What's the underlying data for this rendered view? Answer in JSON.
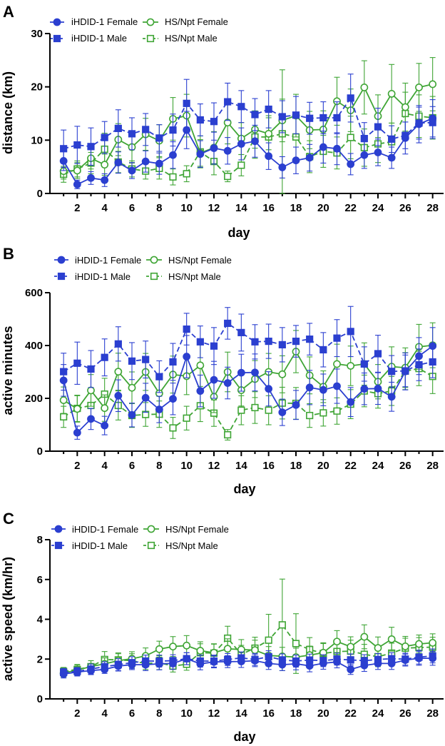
{
  "figure": {
    "legend_entries": [
      "iHDID-1 Female",
      "iHDID-1 Male",
      "HS/Npt Female",
      "HS/Npt Male"
    ]
  },
  "colors": {
    "ihdid": "#2b3fd0",
    "hsnpt": "#3fa535"
  },
  "chart_data": [
    {
      "panel_label": "A",
      "type": "line",
      "title": "",
      "xlabel": "day",
      "ylabel": "distance (km)",
      "xlim": [
        0,
        28.8
      ],
      "ylim": [
        0,
        30
      ],
      "xticks": [
        2,
        4,
        6,
        8,
        10,
        12,
        14,
        16,
        18,
        20,
        22,
        24,
        26,
        28
      ],
      "yticks": [
        0,
        10,
        20,
        30
      ],
      "legend": "top-left",
      "x": [
        1,
        2,
        3,
        4,
        5,
        6,
        7,
        8,
        9,
        10,
        11,
        12,
        13,
        14,
        15,
        16,
        17,
        18,
        19,
        20,
        21,
        22,
        23,
        24,
        25,
        26,
        27,
        28
      ],
      "series": [
        {
          "name": "iHDID-1 Female",
          "marker": "circle",
          "filled": true,
          "dashed": false,
          "color": "#2b3fd0",
          "values": [
            6.1,
            1.7,
            2.9,
            2.5,
            5.8,
            4.3,
            6.0,
            5.6,
            7.2,
            11.9,
            7.4,
            8.5,
            8.0,
            9.3,
            9.8,
            7.0,
            4.9,
            6.2,
            6.7,
            8.7,
            8.4,
            5.5,
            7.2,
            7.7,
            6.7,
            10.4,
            13.0,
            14.1
          ],
          "err": [
            1.8,
            0.8,
            1.2,
            1.2,
            2.0,
            1.5,
            2.0,
            2.0,
            2.5,
            3.5,
            2.5,
            3.0,
            2.5,
            3.0,
            3.0,
            2.5,
            2.0,
            2.5,
            2.5,
            3.0,
            3.0,
            2.0,
            2.5,
            2.5,
            2.0,
            3.0,
            3.5,
            3.5
          ]
        },
        {
          "name": "iHDID-1 Male",
          "marker": "square",
          "filled": true,
          "dashed": true,
          "color": "#2b3fd0",
          "values": [
            8.4,
            9.1,
            8.8,
            10.5,
            12.2,
            11.2,
            12.0,
            10.4,
            11.9,
            16.9,
            13.8,
            13.5,
            17.2,
            16.3,
            14.8,
            15.8,
            14.4,
            14.7,
            14.1,
            14.2,
            14.2,
            17.9,
            10.3,
            12.5,
            10.2,
            10.9,
            13.2,
            13.3
          ],
          "err": [
            3.5,
            3.5,
            3.5,
            3.0,
            3.5,
            3.0,
            3.0,
            2.5,
            3.0,
            4.5,
            3.0,
            3.5,
            3.5,
            3.0,
            3.0,
            3.5,
            3.0,
            3.5,
            3.0,
            3.0,
            3.0,
            4.5,
            3.0,
            3.5,
            2.5,
            2.5,
            3.0,
            3.0
          ]
        },
        {
          "name": "HS/Npt Female",
          "marker": "circle",
          "filled": false,
          "dashed": false,
          "color": "#3fa535",
          "values": [
            4.2,
            4.3,
            6.6,
            5.4,
            10.1,
            8.7,
            11.1,
            9.9,
            14.0,
            14.6,
            7.6,
            8.6,
            13.3,
            10.3,
            12.0,
            11.2,
            13.7,
            14.6,
            11.9,
            12.0,
            17.3,
            15.6,
            19.9,
            14.5,
            18.7,
            16.2,
            19.9,
            20.5
          ],
          "err": [
            1.5,
            1.5,
            2.0,
            2.0,
            3.0,
            3.0,
            3.0,
            3.0,
            4.0,
            4.0,
            2.5,
            3.0,
            4.0,
            3.0,
            3.5,
            3.0,
            4.0,
            4.0,
            3.5,
            3.5,
            4.5,
            4.0,
            5.0,
            4.0,
            5.5,
            4.5,
            4.5,
            5.0
          ]
        },
        {
          "name": "HS/Npt Male",
          "marker": "square",
          "filled": false,
          "dashed": true,
          "color": "#3fa535",
          "values": [
            3.6,
            4.6,
            5.7,
            8.3,
            5.9,
            4.6,
            4.2,
            4.7,
            3.1,
            3.7,
            7.8,
            6.0,
            3.2,
            5.3,
            10.6,
            10.6,
            11.2,
            10.6,
            6.9,
            7.9,
            7.6,
            10.5,
            8.6,
            9.3,
            9.7,
            15.0,
            14.5,
            14.2
          ],
          "err": [
            1.5,
            1.5,
            2.0,
            3.0,
            2.0,
            1.5,
            1.5,
            2.0,
            1.5,
            1.5,
            3.0,
            2.5,
            1.0,
            2.0,
            4.0,
            4.0,
            12.0,
            4.5,
            3.0,
            3.0,
            3.0,
            4.0,
            3.5,
            3.5,
            3.5,
            4.0,
            4.0,
            4.0
          ]
        }
      ]
    },
    {
      "panel_label": "B",
      "type": "line",
      "title": "",
      "xlabel": "day",
      "ylabel": "active minutes",
      "xlim": [
        0,
        28.8
      ],
      "ylim": [
        0,
        600
      ],
      "xticks": [
        2,
        4,
        6,
        8,
        10,
        12,
        14,
        16,
        18,
        20,
        22,
        24,
        26,
        28
      ],
      "yticks": [
        0,
        200,
        400,
        600
      ],
      "legend": "top-left",
      "x": [
        1,
        2,
        3,
        4,
        5,
        6,
        7,
        8,
        9,
        10,
        11,
        12,
        13,
        14,
        15,
        16,
        17,
        18,
        19,
        20,
        21,
        22,
        23,
        24,
        25,
        26,
        27,
        28
      ],
      "series": [
        {
          "name": "iHDID-1 Female",
          "marker": "circle",
          "filled": true,
          "dashed": false,
          "color": "#2b3fd0",
          "values": [
            268,
            70,
            122,
            97,
            210,
            137,
            202,
            158,
            198,
            358,
            228,
            270,
            258,
            297,
            298,
            236,
            147,
            175,
            241,
            232,
            246,
            186,
            236,
            237,
            206,
            302,
            360,
            398
          ],
          "err": [
            60,
            25,
            40,
            35,
            60,
            45,
            55,
            50,
            60,
            80,
            60,
            70,
            60,
            70,
            70,
            65,
            50,
            55,
            65,
            60,
            65,
            55,
            60,
            60,
            55,
            70,
            70,
            70
          ]
        },
        {
          "name": "iHDID-1 Male",
          "marker": "square",
          "filled": true,
          "dashed": true,
          "color": "#2b3fd0",
          "values": [
            301,
            333,
            311,
            355,
            406,
            341,
            347,
            282,
            338,
            462,
            414,
            398,
            484,
            449,
            414,
            416,
            403,
            416,
            424,
            384,
            428,
            453,
            330,
            369,
            302,
            304,
            327,
            338
          ],
          "err": [
            70,
            80,
            70,
            70,
            65,
            70,
            70,
            60,
            70,
            60,
            60,
            70,
            60,
            70,
            65,
            65,
            65,
            60,
            60,
            65,
            70,
            95,
            65,
            70,
            60,
            60,
            60,
            60
          ]
        },
        {
          "name": "HS/Npt Female",
          "marker": "circle",
          "filled": false,
          "dashed": false,
          "color": "#3fa535",
          "values": [
            193,
            160,
            230,
            163,
            301,
            240,
            300,
            219,
            290,
            284,
            325,
            206,
            300,
            231,
            273,
            300,
            291,
            377,
            287,
            244,
            330,
            323,
            330,
            263,
            320,
            316,
            395,
            401
          ],
          "err": [
            50,
            50,
            60,
            50,
            70,
            60,
            70,
            60,
            70,
            70,
            80,
            60,
            75,
            60,
            70,
            70,
            70,
            80,
            70,
            60,
            75,
            75,
            80,
            65,
            75,
            75,
            85,
            85
          ]
        },
        {
          "name": "HS/Npt Male",
          "marker": "square",
          "filled": false,
          "dashed": true,
          "color": "#3fa535",
          "values": [
            130,
            162,
            173,
            216,
            173,
            135,
            139,
            140,
            88,
            125,
            172,
            144,
            62,
            155,
            165,
            155,
            182,
            181,
            135,
            145,
            152,
            178,
            228,
            218,
            228,
            303,
            313,
            283
          ],
          "err": [
            40,
            50,
            50,
            60,
            55,
            45,
            45,
            50,
            40,
            45,
            60,
            50,
            20,
            55,
            60,
            55,
            60,
            60,
            45,
            50,
            50,
            55,
            60,
            55,
            55,
            70,
            65,
            65
          ]
        }
      ]
    },
    {
      "panel_label": "C",
      "type": "line",
      "title": "",
      "xlabel": "day",
      "ylabel": "active speed (km/hr)",
      "xlim": [
        0,
        28.8
      ],
      "ylim": [
        0,
        8
      ],
      "xticks": [
        2,
        4,
        6,
        8,
        10,
        12,
        14,
        16,
        18,
        20,
        22,
        24,
        26,
        28
      ],
      "yticks": [
        0,
        2,
        4,
        6,
        8
      ],
      "legend": "top-left",
      "x": [
        1,
        2,
        3,
        4,
        5,
        6,
        7,
        8,
        9,
        10,
        11,
        12,
        13,
        14,
        15,
        16,
        17,
        18,
        19,
        20,
        21,
        22,
        23,
        24,
        25,
        26,
        27,
        28
      ],
      "series": [
        {
          "name": "iHDID-1 Female",
          "marker": "circle",
          "filled": true,
          "dashed": false,
          "color": "#2b3fd0",
          "values": [
            1.25,
            1.35,
            1.42,
            1.48,
            1.65,
            1.72,
            1.72,
            1.76,
            1.78,
            2.02,
            1.76,
            1.86,
            1.87,
            1.88,
            1.92,
            1.78,
            1.72,
            1.76,
            1.66,
            1.79,
            1.86,
            1.48,
            1.68,
            1.78,
            1.78,
            1.95,
            2.04,
            2.04
          ],
          "err": [
            0.2,
            0.2,
            0.2,
            0.2,
            0.25,
            0.25,
            0.3,
            0.3,
            0.3,
            0.3,
            0.3,
            0.3,
            0.3,
            0.3,
            0.3,
            0.3,
            0.3,
            0.3,
            0.3,
            0.3,
            0.3,
            0.25,
            0.3,
            0.3,
            0.3,
            0.3,
            0.35,
            0.35
          ]
        },
        {
          "name": "iHDID-1 Male",
          "marker": "square",
          "filled": true,
          "dashed": true,
          "color": "#2b3fd0",
          "values": [
            1.33,
            1.38,
            1.5,
            1.62,
            1.72,
            1.82,
            1.9,
            1.9,
            1.92,
            2.02,
            1.9,
            1.9,
            1.98,
            2.06,
            1.98,
            2.12,
            1.96,
            1.9,
            1.95,
            1.92,
            2.0,
            1.96,
            1.92,
            1.98,
            2.02,
            2.0,
            2.1,
            2.16
          ],
          "err": [
            0.2,
            0.2,
            0.25,
            0.25,
            0.3,
            0.3,
            0.3,
            0.3,
            0.3,
            0.3,
            0.3,
            0.3,
            0.3,
            0.3,
            0.3,
            0.3,
            0.3,
            0.3,
            0.3,
            0.3,
            0.3,
            0.3,
            0.3,
            0.3,
            0.3,
            0.3,
            0.35,
            0.35
          ]
        },
        {
          "name": "HS/Npt Female",
          "marker": "circle",
          "filled": false,
          "dashed": false,
          "color": "#3fa535",
          "values": [
            1.3,
            1.45,
            1.62,
            1.76,
            1.92,
            2.02,
            2.16,
            2.5,
            2.63,
            2.68,
            2.42,
            2.32,
            2.52,
            2.48,
            2.45,
            2.18,
            2.14,
            2.1,
            2.2,
            2.32,
            2.88,
            2.62,
            3.12,
            2.56,
            3.0,
            2.64,
            2.76,
            2.82
          ],
          "err": [
            0.2,
            0.25,
            0.3,
            0.3,
            0.35,
            0.35,
            0.4,
            0.4,
            0.5,
            0.5,
            0.45,
            0.45,
            0.5,
            0.5,
            0.5,
            0.45,
            0.45,
            0.45,
            0.45,
            0.5,
            0.55,
            0.5,
            0.6,
            0.55,
            0.6,
            0.5,
            0.45,
            0.45
          ]
        },
        {
          "name": "HS/Npt Male",
          "marker": "square",
          "filled": false,
          "dashed": true,
          "color": "#3fa535",
          "values": [
            1.38,
            1.48,
            1.62,
            1.98,
            1.96,
            1.92,
            1.78,
            1.82,
            1.65,
            1.74,
            2.32,
            2.3,
            3.05,
            2.24,
            2.55,
            2.95,
            3.72,
            2.78,
            2.48,
            2.28,
            2.38,
            2.4,
            2.24,
            2.12,
            2.3,
            2.55,
            2.58,
            2.6
          ],
          "err": [
            0.2,
            0.25,
            0.3,
            0.4,
            0.35,
            0.35,
            0.3,
            0.35,
            0.3,
            0.3,
            0.45,
            0.45,
            0.6,
            0.45,
            0.55,
            1.3,
            2.3,
            1.5,
            0.6,
            0.5,
            0.5,
            0.55,
            0.5,
            0.5,
            0.5,
            0.5,
            0.5,
            0.5
          ]
        }
      ]
    }
  ]
}
